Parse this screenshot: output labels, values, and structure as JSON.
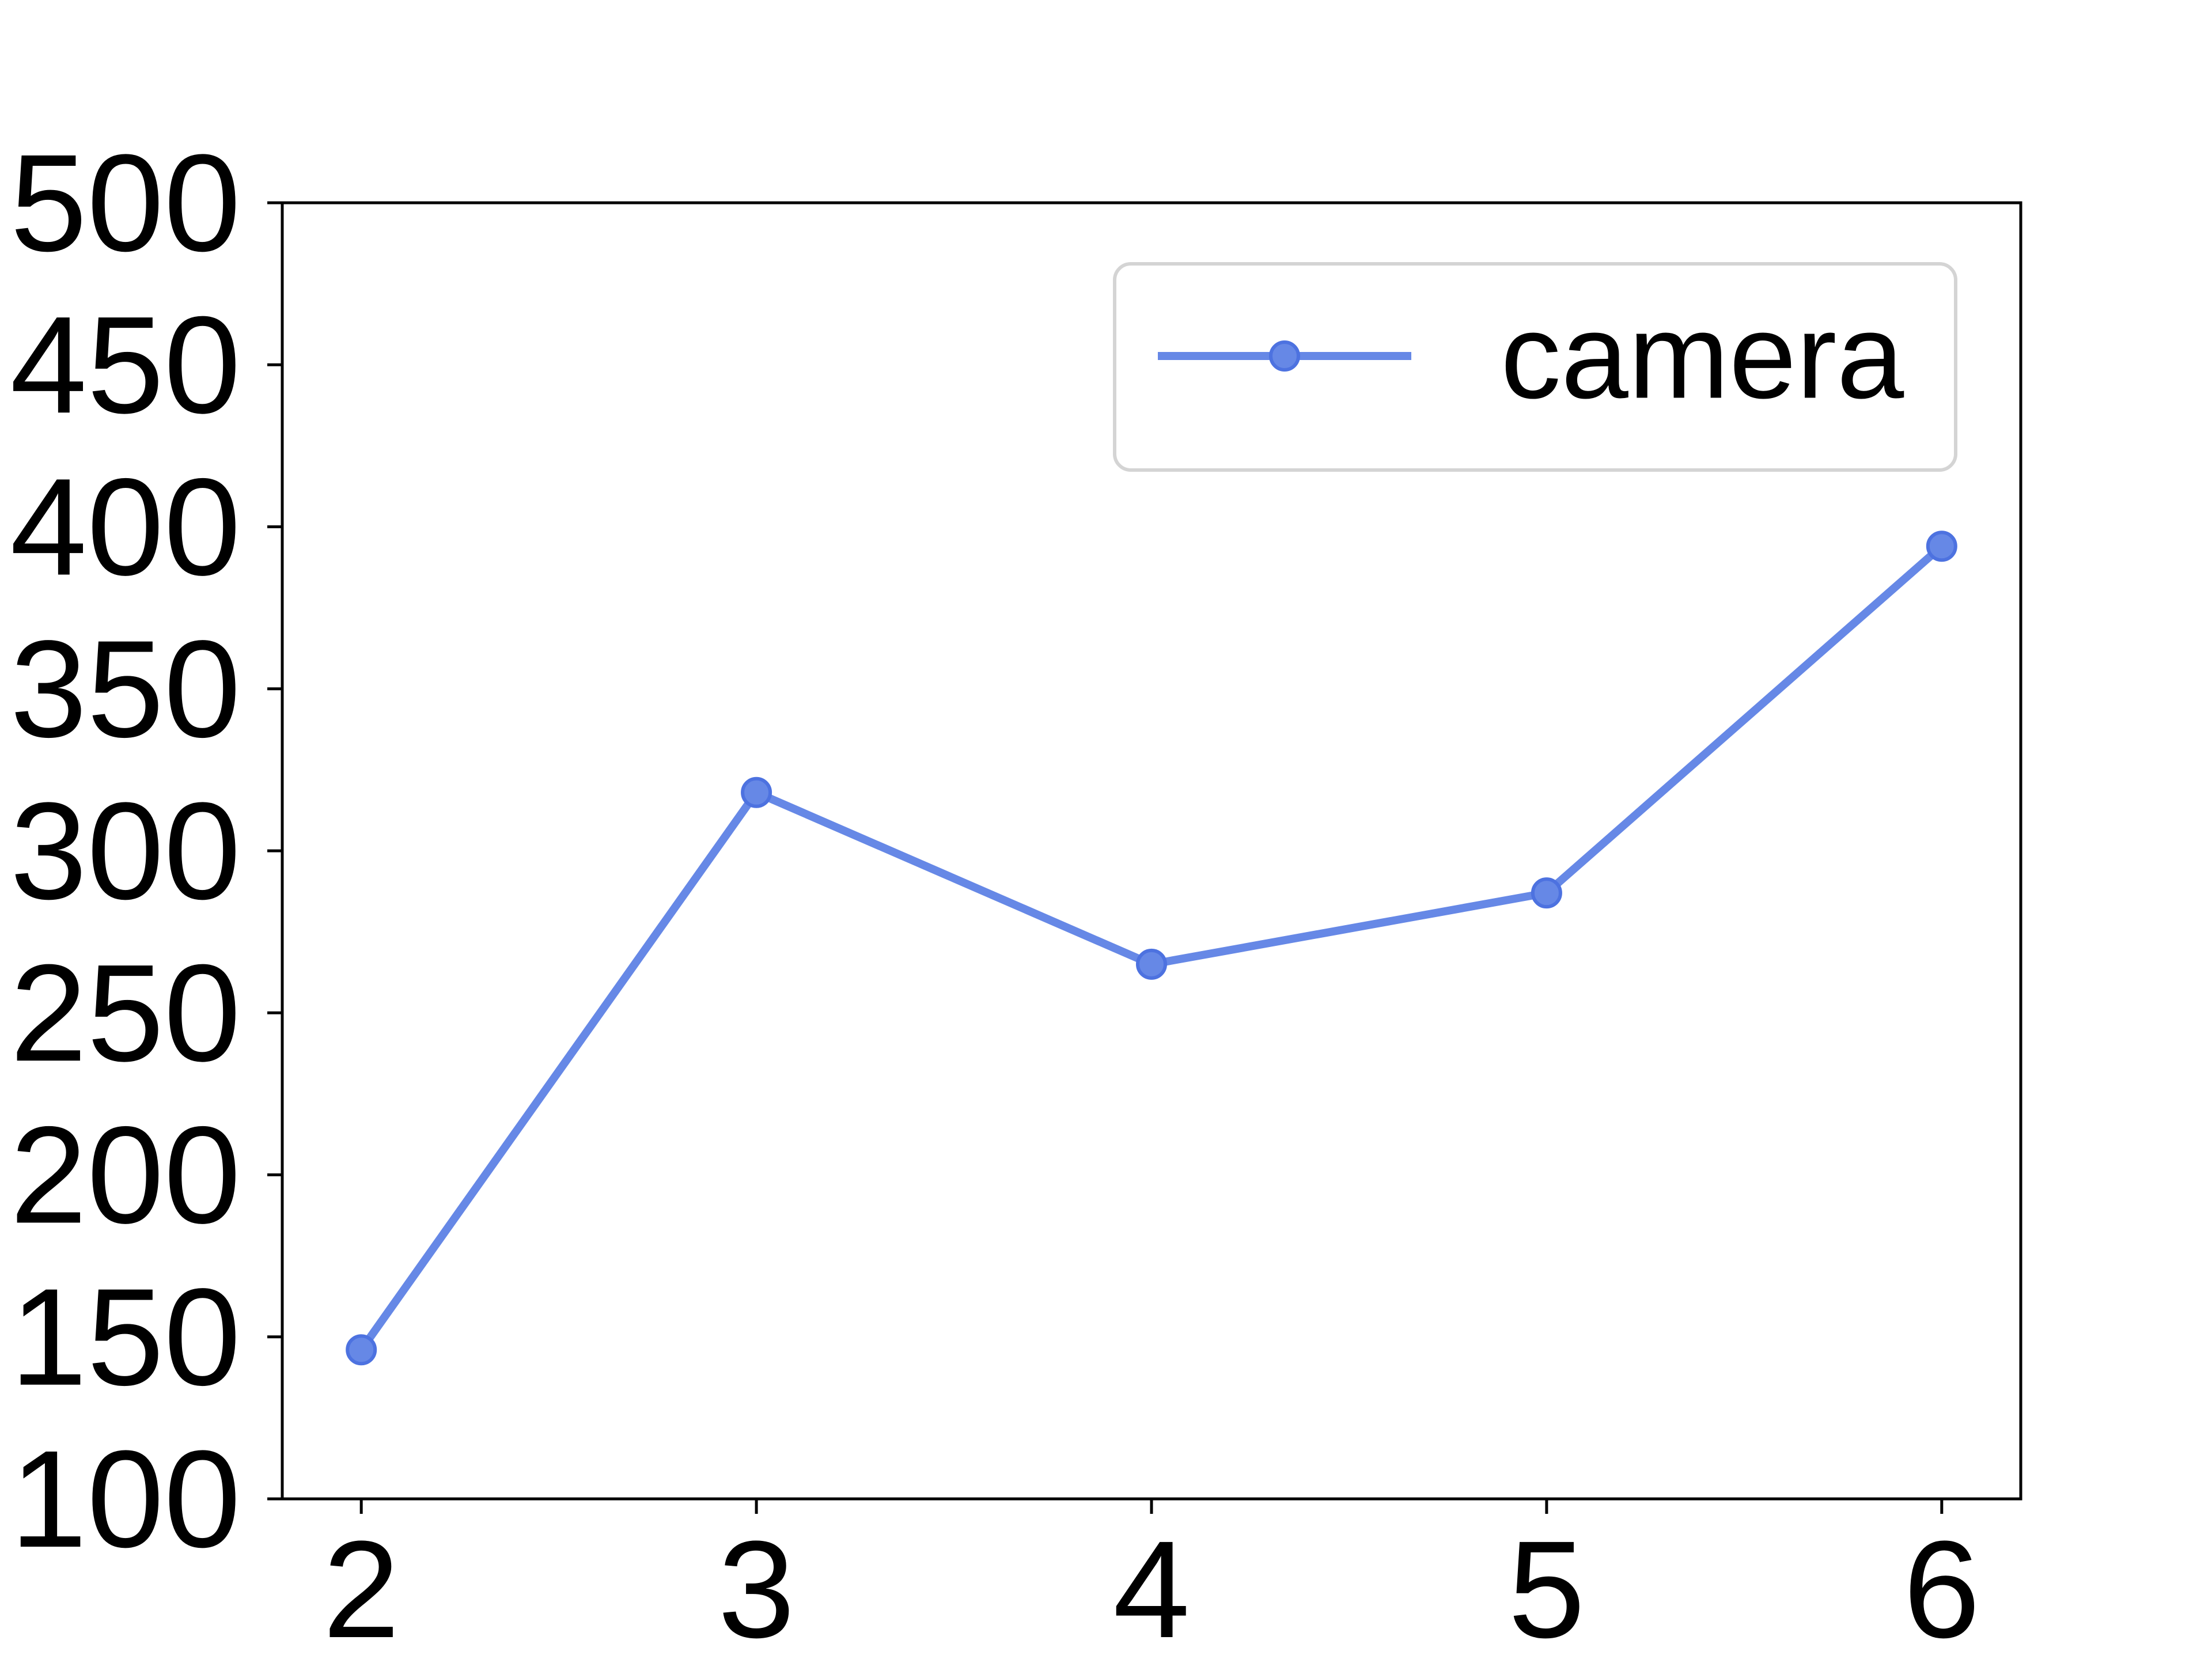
{
  "chart_data": {
    "type": "line",
    "title": "",
    "xlabel": "",
    "ylabel": "",
    "x": [
      2,
      3,
      4,
      5,
      6
    ],
    "series": [
      {
        "name": "camera",
        "values": [
          146,
          318,
          265,
          287,
          394
        ],
        "color": "#6688e6"
      }
    ],
    "xlim": [
      1.8,
      6.2
    ],
    "ylim": [
      100,
      500
    ],
    "xticks": [
      "2",
      "3",
      "4",
      "5",
      "6"
    ],
    "yticks": [
      "100",
      "150",
      "200",
      "250",
      "300",
      "350",
      "400",
      "450",
      "500"
    ],
    "ytick_values": [
      100,
      150,
      200,
      250,
      300,
      350,
      400,
      450,
      500
    ],
    "xtick_values": [
      2,
      3,
      4,
      5,
      6
    ],
    "grid": false,
    "legend": "top-right",
    "marker": "circle"
  }
}
